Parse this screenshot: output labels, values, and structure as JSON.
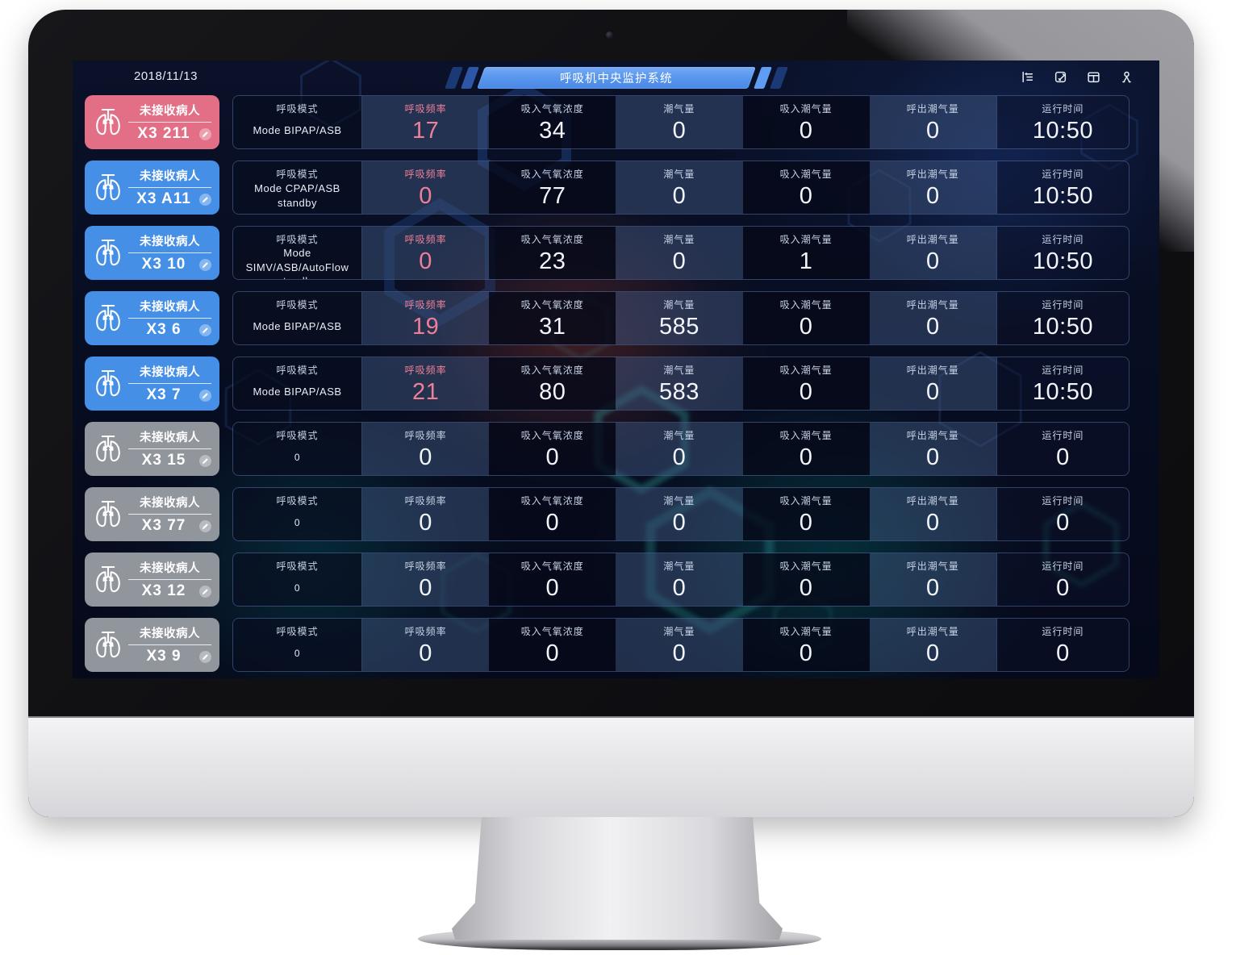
{
  "page": {
    "date": "2018/11/13",
    "title": "呼吸机中央监护系统"
  },
  "toolbar": {
    "icons": [
      {
        "name": "collapse-menu-icon"
      },
      {
        "name": "edit-note-icon"
      },
      {
        "name": "layout-icon"
      },
      {
        "name": "user-icon"
      }
    ]
  },
  "table": {
    "columns": {
      "mode": "呼吸模式",
      "rate": "呼吸频率",
      "fio2": "吸入气氧浓度",
      "tidal": "潮气量",
      "insp_tidal": "吸入潮气量",
      "exp_tidal": "呼出潮气量",
      "runtime": "运行时间"
    }
  },
  "rows": [
    {
      "status": "alarm",
      "label": "未接收病人",
      "id": "X3 211",
      "mode": "Mode BIPAP/ASB",
      "rate": "17",
      "fio2": "34",
      "tidal": "0",
      "insp_tidal": "0",
      "exp_tidal": "0",
      "runtime": "10:50"
    },
    {
      "status": "online",
      "label": "未接收病人",
      "id": "X3 A11",
      "mode": "Mode CPAP/ASB standby",
      "rate": "0",
      "fio2": "77",
      "tidal": "0",
      "insp_tidal": "0",
      "exp_tidal": "0",
      "runtime": "10:50"
    },
    {
      "status": "online",
      "label": "未接收病人",
      "id": "X3 10",
      "mode": "Mode SIMV/ASB/AutoFlow standby",
      "rate": "0",
      "fio2": "23",
      "tidal": "0",
      "insp_tidal": "1",
      "exp_tidal": "0",
      "runtime": "10:50"
    },
    {
      "status": "online",
      "label": "未接收病人",
      "id": "X3 6",
      "mode": "Mode BIPAP/ASB",
      "rate": "19",
      "fio2": "31",
      "tidal": "585",
      "insp_tidal": "0",
      "exp_tidal": "0",
      "runtime": "10:50"
    },
    {
      "status": "online",
      "label": "未接收病人",
      "id": "X3 7",
      "mode": "Mode BIPAP/ASB",
      "rate": "21",
      "fio2": "80",
      "tidal": "583",
      "insp_tidal": "0",
      "exp_tidal": "0",
      "runtime": "10:50"
    },
    {
      "status": "offline",
      "label": "未接收病人",
      "id": "X3 15",
      "mode": "0",
      "rate": "0",
      "fio2": "0",
      "tidal": "0",
      "insp_tidal": "0",
      "exp_tidal": "0",
      "runtime": "0"
    },
    {
      "status": "offline",
      "label": "未接收病人",
      "id": "X3 77",
      "mode": "0",
      "rate": "0",
      "fio2": "0",
      "tidal": "0",
      "insp_tidal": "0",
      "exp_tidal": "0",
      "runtime": "0"
    },
    {
      "status": "offline",
      "label": "未接收病人",
      "id": "X3 12",
      "mode": "0",
      "rate": "0",
      "fio2": "0",
      "tidal": "0",
      "insp_tidal": "0",
      "exp_tidal": "0",
      "runtime": "0"
    },
    {
      "status": "offline",
      "label": "未接收病人",
      "id": "X3 9",
      "mode": "0",
      "rate": "0",
      "fio2": "0",
      "tidal": "0",
      "insp_tidal": "0",
      "exp_tidal": "0",
      "runtime": "0"
    }
  ],
  "colors": {
    "alarm_badge": "#e26f86",
    "online_badge": "#458fe6",
    "offline_badge": "#91959c",
    "accent_pink": "#ed8096",
    "banner_blue": "#5a97ee",
    "screen_bg": "#070d20"
  }
}
